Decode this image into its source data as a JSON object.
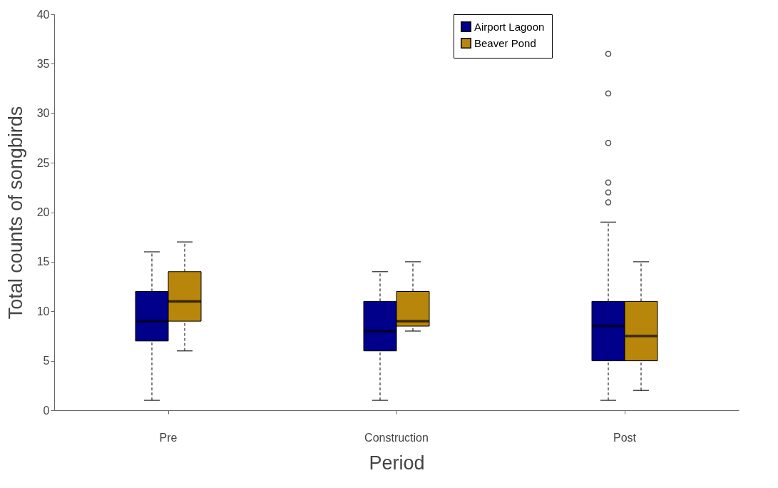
{
  "chart_data": {
    "type": "box",
    "xlabel": "Period",
    "ylabel": "Total counts of songbirds",
    "categories": [
      "Pre",
      "Construction",
      "Post"
    ],
    "series": [
      {
        "name": "Airport Lagoon",
        "color": "#00008b",
        "boxes": [
          {
            "low": 1,
            "q1": 7,
            "median": 9,
            "q3": 12,
            "high": 16
          },
          {
            "low": 1,
            "q1": 6,
            "median": 8,
            "q3": 11,
            "high": 14
          },
          {
            "low": 1,
            "q1": 5,
            "median": 8.5,
            "q3": 11,
            "high": 19,
            "outliers": [
              21,
              22,
              23,
              27,
              32,
              36
            ]
          }
        ]
      },
      {
        "name": "Beaver Pond",
        "color": "#b8860b",
        "boxes": [
          {
            "low": 6,
            "q1": 9,
            "median": 11,
            "q3": 14,
            "high": 17
          },
          {
            "low": 8,
            "q1": 8.5,
            "median": 9,
            "q3": 12,
            "high": 15
          },
          {
            "low": 2,
            "q1": 5,
            "median": 7.5,
            "q3": 11,
            "high": 15
          }
        ]
      }
    ],
    "ylim": [
      0,
      40
    ],
    "yticks": [
      0,
      5,
      10,
      15,
      20,
      25,
      30,
      35,
      40
    ],
    "grid": false,
    "legend": "top"
  }
}
